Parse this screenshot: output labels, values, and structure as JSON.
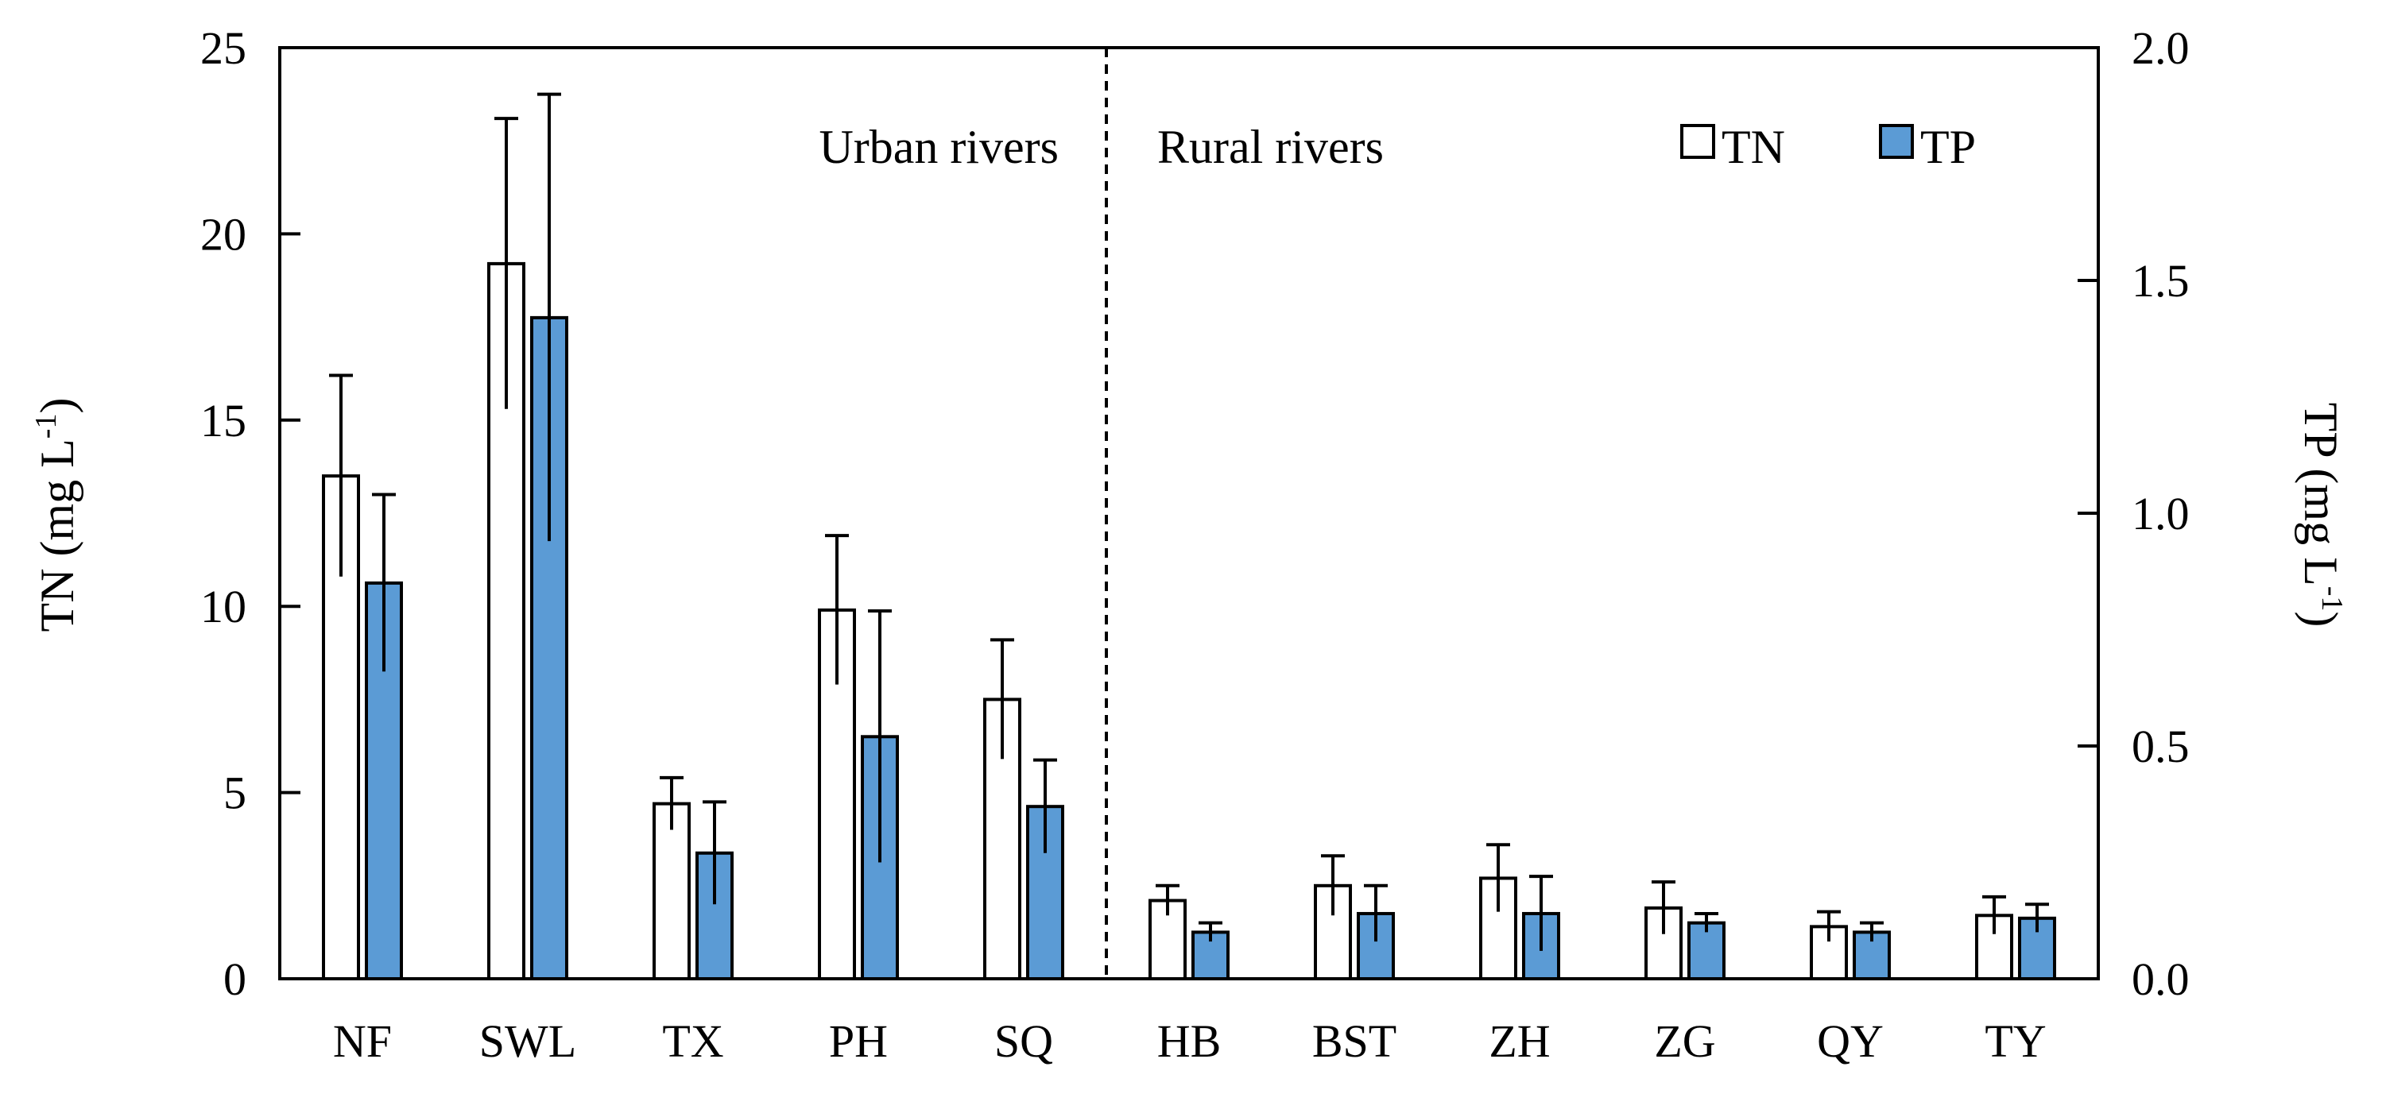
{
  "chart_data": {
    "type": "bar",
    "title": "",
    "categories": [
      "NF",
      "SWL",
      "TX",
      "PH",
      "SQ",
      "HB",
      "BST",
      "ZH",
      "ZG",
      "QY",
      "TY"
    ],
    "series": [
      {
        "name": "TN",
        "axis": "left",
        "color": "#ffffff",
        "values": [
          13.5,
          19.2,
          4.7,
          9.9,
          7.5,
          2.1,
          2.5,
          2.7,
          1.9,
          1.4,
          1.7
        ],
        "errors": [
          2.7,
          3.9,
          0.7,
          2.0,
          1.6,
          0.4,
          0.8,
          0.9,
          0.7,
          0.4,
          0.5
        ]
      },
      {
        "name": "TP",
        "axis": "right",
        "color": "#5b9bd5",
        "values": [
          0.85,
          1.42,
          0.27,
          0.52,
          0.37,
          0.1,
          0.14,
          0.14,
          0.12,
          0.1,
          0.13
        ],
        "errors": [
          0.19,
          0.48,
          0.11,
          0.27,
          0.1,
          0.02,
          0.06,
          0.08,
          0.02,
          0.02,
          0.03
        ]
      }
    ],
    "y_left": {
      "label": "TN (mg L",
      "label_sup": "-1",
      "label_close": ")",
      "ylim": [
        0,
        25
      ],
      "ticks": [
        0,
        5,
        10,
        15,
        20,
        25
      ],
      "tick_labels": [
        "0",
        "5",
        "10",
        "15",
        "20",
        "25"
      ]
    },
    "y_right": {
      "label": "TP (mg L",
      "label_sup": "-1",
      "label_close": ")",
      "ylim": [
        0,
        2.0
      ],
      "ticks": [
        0,
        0.5,
        1.0,
        1.5,
        2.0
      ],
      "tick_labels": [
        "0.0",
        "0.5",
        "1.0",
        "1.5",
        "2.0"
      ]
    },
    "annotations": [
      {
        "text": "Urban rivers"
      },
      {
        "text": "Rural rivers"
      }
    ],
    "divider_after_category": "SQ",
    "legend": {
      "position": "top-right",
      "entries": [
        "TN",
        "TP"
      ]
    },
    "colors": {
      "tn": "#ffffff",
      "tp": "#5b9bd5",
      "stroke": "#000000"
    }
  }
}
